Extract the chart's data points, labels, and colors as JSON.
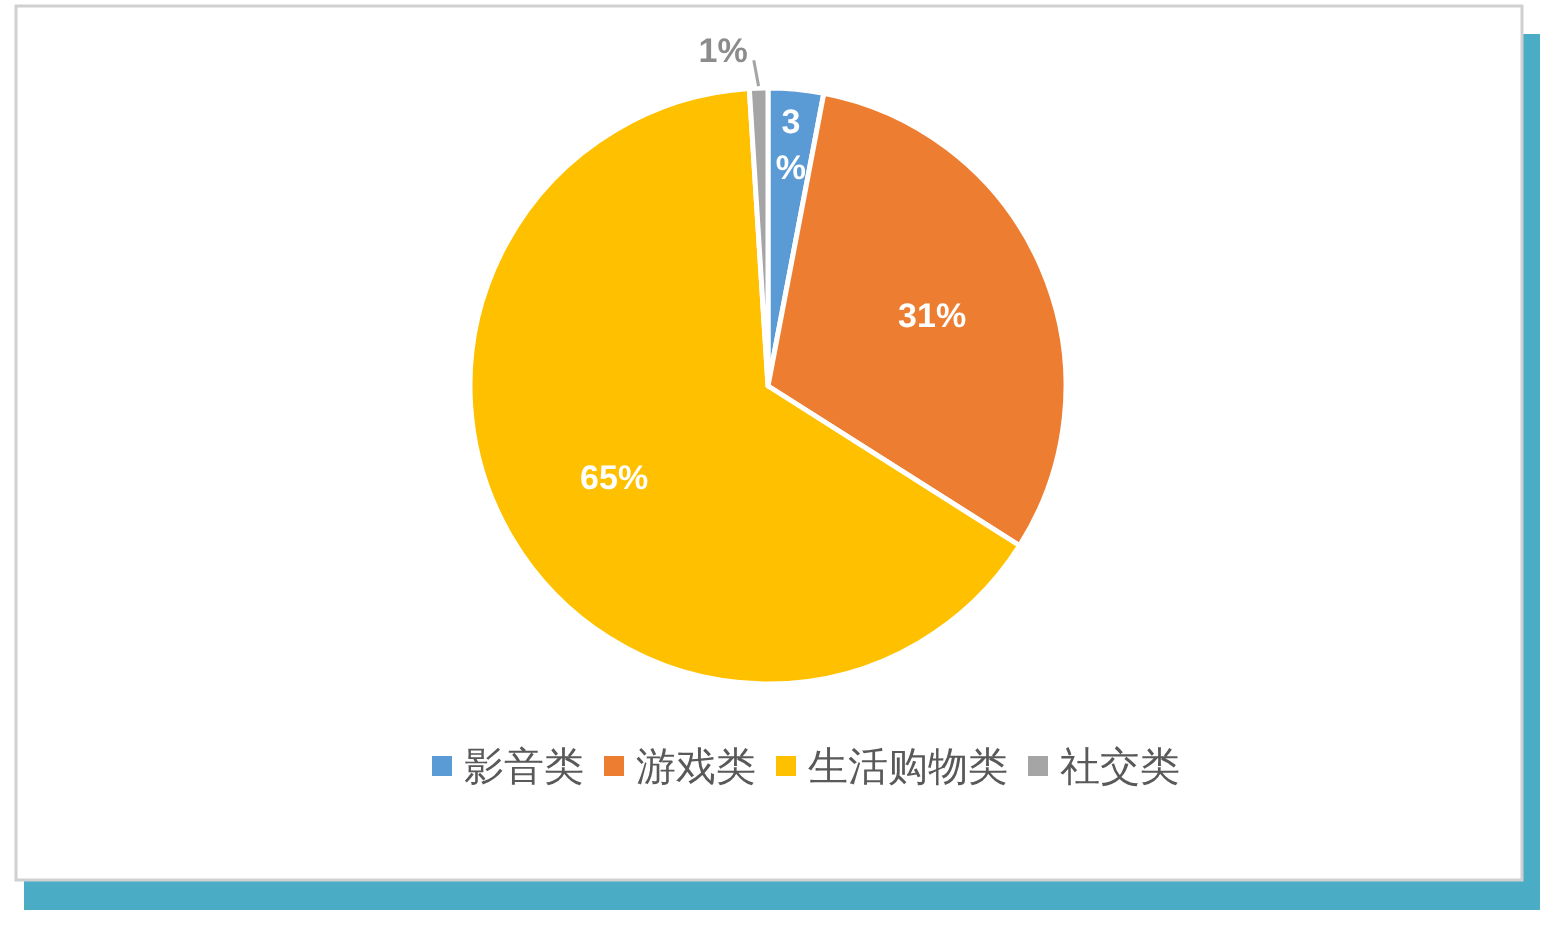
{
  "chart_data": {
    "type": "pie",
    "categories": [
      "影音类",
      "游戏类",
      "生活购物类",
      "社交类"
    ],
    "values": [
      3,
      31,
      65,
      1
    ],
    "colors": [
      "#5b9bd5",
      "#ed7d31",
      "#ffc000",
      "#a5a5a5"
    ],
    "value_labels": [
      "3%",
      "31%",
      "65%",
      "1%"
    ],
    "legend": "bottom"
  }
}
